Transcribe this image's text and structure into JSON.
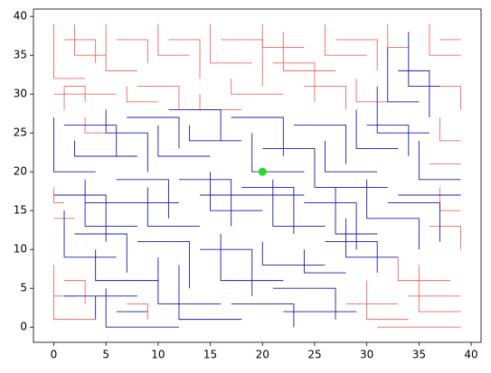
{
  "chart_data": {
    "type": "segments",
    "xlim": [
      -1.95,
      40.95
    ],
    "ylim": [
      -1.95,
      40.95
    ],
    "xticks": [
      0,
      5,
      10,
      15,
      20,
      25,
      30,
      35,
      40
    ],
    "yticks": [
      0,
      5,
      10,
      15,
      20,
      25,
      30,
      35,
      40
    ],
    "series": [
      {
        "color": "#ec6a62",
        "lines": [
          {
            "x": [
              0,
              0,
              3
            ],
            "y": [
              39,
              32,
              32
            ]
          },
          {
            "x": [
              1,
              4,
              4
            ],
            "y": [
              37,
              37,
              34
            ]
          },
          {
            "x": [
              2,
              2,
              5
            ],
            "y": [
              39,
              35,
              35
            ]
          },
          {
            "x": [
              0,
              6
            ],
            "y": [
              30,
              30
            ]
          },
          {
            "x": [
              1,
              1,
              3,
              3
            ],
            "y": [
              28,
              31,
              31,
              29
            ]
          },
          {
            "x": [
              5,
              5,
              8
            ],
            "y": [
              39,
              33,
              33
            ]
          },
          {
            "x": [
              6,
              9,
              9
            ],
            "y": [
              37,
              37,
              34
            ]
          },
          {
            "x": [
              7,
              7,
              10
            ],
            "y": [
              31,
              29,
              29
            ]
          },
          {
            "x": [
              10,
              10,
              13
            ],
            "y": [
              39,
              35,
              35
            ]
          },
          {
            "x": [
              11,
              14,
              14
            ],
            "y": [
              37,
              37,
              32
            ]
          },
          {
            "x": [
              8,
              12,
              12
            ],
            "y": [
              31,
              31,
              28
            ]
          },
          {
            "x": [
              14,
              14,
              18
            ],
            "y": [
              30,
              28,
              28
            ]
          },
          {
            "x": [
              15,
              15,
              19
            ],
            "y": [
              39,
              34,
              34
            ]
          },
          {
            "x": [
              16,
              20,
              20
            ],
            "y": [
              37,
              37,
              31
            ]
          },
          {
            "x": [
              17,
              17,
              22
            ],
            "y": [
              32,
              30,
              30
            ]
          },
          {
            "x": [
              20,
              20,
              24
            ],
            "y": [
              39,
              36,
              36
            ]
          },
          {
            "x": [
              21,
              25,
              25
            ],
            "y": [
              34,
              34,
              29
            ]
          },
          {
            "x": [
              22,
              22,
              27
            ],
            "y": [
              38,
              33,
              33
            ]
          },
          {
            "x": [
              24,
              28,
              28
            ],
            "y": [
              31,
              31,
              28
            ]
          },
          {
            "x": [
              26,
              26,
              30
            ],
            "y": [
              39,
              35,
              35
            ]
          },
          {
            "x": [
              27,
              31,
              31
            ],
            "y": [
              37,
              37,
              33
            ]
          },
          {
            "x": [
              29,
              29,
              32
            ],
            "y": [
              32,
              29,
              29
            ]
          },
          {
            "x": [
              36,
              36,
              39
            ],
            "y": [
              39,
              35,
              35
            ]
          },
          {
            "x": [
              37,
              39
            ],
            "y": [
              37,
              37
            ]
          },
          {
            "x": [
              36,
              39,
              39
            ],
            "y": [
              31,
              31,
              28
            ]
          },
          {
            "x": [
              37,
              37,
              39
            ],
            "y": [
              27,
              24,
              24
            ]
          },
          {
            "x": [
              36,
              39
            ],
            "y": [
              21,
              21
            ]
          },
          {
            "x": [
              37,
              37,
              39
            ],
            "y": [
              18,
              15,
              15
            ]
          },
          {
            "x": [
              36,
              39,
              39
            ],
            "y": [
              13,
              13,
              10
            ]
          },
          {
            "x": [
              33,
              33,
              38
            ],
            "y": [
              9,
              6,
              6
            ]
          },
          {
            "x": [
              34,
              39
            ],
            "y": [
              4,
              4
            ]
          },
          {
            "x": [
              35,
              35,
              39
            ],
            "y": [
              8,
              2,
              2
            ]
          },
          {
            "x": [
              30,
              30,
              34
            ],
            "y": [
              6,
              1,
              1
            ]
          },
          {
            "x": [
              28,
              33
            ],
            "y": [
              3,
              3
            ]
          },
          {
            "x": [
              31,
              39
            ],
            "y": [
              0,
              0
            ]
          },
          {
            "x": [
              0,
              0,
              4
            ],
            "y": [
              8,
              1,
              1
            ]
          },
          {
            "x": [
              1,
              3,
              3
            ],
            "y": [
              6,
              6,
              3
            ]
          },
          {
            "x": [
              0,
              2
            ],
            "y": [
              4,
              4
            ]
          },
          {
            "x": [
              0,
              2
            ],
            "y": [
              14,
              14
            ]
          },
          {
            "x": [
              0,
              0,
              1
            ],
            "y": [
              18,
              16,
              16
            ]
          },
          {
            "x": [
              7,
              9,
              9
            ],
            "y": [
              3,
              3,
              1
            ]
          },
          {
            "x": [
              13,
              17
            ],
            "y": [
              28,
              28
            ]
          },
          {
            "x": [
              3,
              3,
              5
            ],
            "y": [
              27,
              25,
              25
            ]
          },
          {
            "x": [
              32,
              32,
              34
            ],
            "y": [
              39,
              36,
              36
            ]
          }
        ]
      },
      {
        "color": "#1c1ca8",
        "lines": [
          {
            "x": [
              0,
              0,
              4
            ],
            "y": [
              27,
              20,
              20
            ]
          },
          {
            "x": [
              1,
              6,
              6
            ],
            "y": [
              26,
              26,
              22
            ]
          },
          {
            "x": [
              2,
              2,
              8
            ],
            "y": [
              24,
              22,
              22
            ]
          },
          {
            "x": [
              5,
              5,
              9,
              9
            ],
            "y": [
              28,
              25,
              25,
              20
            ]
          },
          {
            "x": [
              7,
              12,
              12
            ],
            "y": [
              27,
              27,
              23
            ]
          },
          {
            "x": [
              10,
              10,
              15
            ],
            "y": [
              26,
              22,
              22
            ]
          },
          {
            "x": [
              11,
              16,
              16
            ],
            "y": [
              28,
              28,
              24
            ]
          },
          {
            "x": [
              13,
              13,
              18
            ],
            "y": [
              26,
              24,
              24
            ]
          },
          {
            "x": [
              17,
              22,
              22
            ],
            "y": [
              27,
              27,
              22
            ]
          },
          {
            "x": [
              19,
              19,
              24
            ],
            "y": [
              25,
              20,
              20
            ]
          },
          {
            "x": [
              20,
              25,
              25
            ],
            "y": [
              23,
              23,
              18
            ]
          },
          {
            "x": [
              23,
              28,
              28
            ],
            "y": [
              26,
              26,
              21
            ]
          },
          {
            "x": [
              26,
              26,
              31
            ],
            "y": [
              24,
              20,
              20
            ]
          },
          {
            "x": [
              29,
              29,
              33
            ],
            "y": [
              28,
              23,
              23
            ]
          },
          {
            "x": [
              30,
              34,
              34
            ],
            "y": [
              26,
              26,
              22
            ]
          },
          {
            "x": [
              31,
              31,
              36
            ],
            "y": [
              31,
              25,
              25
            ]
          },
          {
            "x": [
              32,
              32,
              35
            ],
            "y": [
              36,
              29,
              29
            ]
          },
          {
            "x": [
              33,
              36,
              36
            ],
            "y": [
              33,
              33,
              27
            ]
          },
          {
            "x": [
              34,
              34,
              37
            ],
            "y": [
              38,
              31,
              31
            ]
          },
          {
            "x": [
              35,
              35,
              39
            ],
            "y": [
              24,
              19,
              19
            ]
          },
          {
            "x": [
              33,
              39
            ],
            "y": [
              17,
              17
            ]
          },
          {
            "x": [
              30,
              30,
              35,
              35
            ],
            "y": [
              19,
              14,
              14,
              10
            ]
          },
          {
            "x": [
              32,
              37,
              37
            ],
            "y": [
              16,
              16,
              11
            ]
          },
          {
            "x": [
              27,
              27,
              31
            ],
            "y": [
              18,
              12,
              12
            ]
          },
          {
            "x": [
              24,
              29,
              29
            ],
            "y": [
              16,
              16,
              10
            ]
          },
          {
            "x": [
              21,
              21,
              26
            ],
            "y": [
              19,
              13,
              13
            ]
          },
          {
            "x": [
              18,
              23,
              23
            ],
            "y": [
              18,
              18,
              12
            ]
          },
          {
            "x": [
              15,
              15,
              20
            ],
            "y": [
              20,
              15,
              15
            ]
          },
          {
            "x": [
              12,
              17,
              17
            ],
            "y": [
              19,
              19,
              13
            ]
          },
          {
            "x": [
              9,
              9,
              14
            ],
            "y": [
              18,
              13,
              13
            ]
          },
          {
            "x": [
              6,
              11,
              11
            ],
            "y": [
              19,
              19,
              14
            ]
          },
          {
            "x": [
              3,
              3,
              8
            ],
            "y": [
              19,
              13,
              13
            ]
          },
          {
            "x": [
              0,
              5,
              5
            ],
            "y": [
              17,
              17,
              11
            ]
          },
          {
            "x": [
              1,
              1,
              6
            ],
            "y": [
              15,
              9,
              9
            ]
          },
          {
            "x": [
              2,
              7,
              7
            ],
            "y": [
              12,
              12,
              7
            ]
          },
          {
            "x": [
              4,
              4,
              10
            ],
            "y": [
              10,
              6,
              6
            ]
          },
          {
            "x": [
              8,
              13,
              13
            ],
            "y": [
              11,
              11,
              5
            ]
          },
          {
            "x": [
              10,
              10,
              16
            ],
            "y": [
              9,
              3,
              3
            ]
          },
          {
            "x": [
              5,
              5,
              12
            ],
            "y": [
              5,
              0,
              0
            ]
          },
          {
            "x": [
              6,
              9
            ],
            "y": [
              2,
              2
            ]
          },
          {
            "x": [
              12,
              12,
              18
            ],
            "y": [
              8,
              1,
              1
            ]
          },
          {
            "x": [
              14,
              19,
              19
            ],
            "y": [
              10,
              10,
              4
            ]
          },
          {
            "x": [
              16,
              16,
              22
            ],
            "y": [
              12,
              6,
              6
            ]
          },
          {
            "x": [
              17,
              23,
              23
            ],
            "y": [
              3,
              3,
              0
            ]
          },
          {
            "x": [
              20,
              20,
              26
            ],
            "y": [
              11,
              8,
              8
            ]
          },
          {
            "x": [
              21,
              27,
              27
            ],
            "y": [
              5,
              5,
              1
            ]
          },
          {
            "x": [
              24,
              24,
              28
            ],
            "y": [
              10,
              7,
              7
            ]
          },
          {
            "x": [
              22,
              29
            ],
            "y": [
              2,
              2
            ]
          },
          {
            "x": [
              26,
              31,
              31
            ],
            "y": [
              11,
              11,
              7
            ]
          },
          {
            "x": [
              28,
              28,
              33
            ],
            "y": [
              14,
              9,
              9
            ]
          },
          {
            "x": [
              25,
              32
            ],
            "y": [
              18,
              18
            ]
          },
          {
            "x": [
              3,
              12
            ],
            "y": [
              16,
              16
            ]
          },
          {
            "x": [
              14,
              24
            ],
            "y": [
              17,
              17
            ]
          },
          {
            "x": [
              1,
              8
            ],
            "y": [
              4,
              4
            ]
          },
          {
            "x": [
              4,
              4
            ],
            "y": [
              1,
              4
            ]
          }
        ]
      }
    ],
    "points": {
      "x": [
        20
      ],
      "y": [
        20
      ],
      "color": "#22dd22"
    }
  }
}
